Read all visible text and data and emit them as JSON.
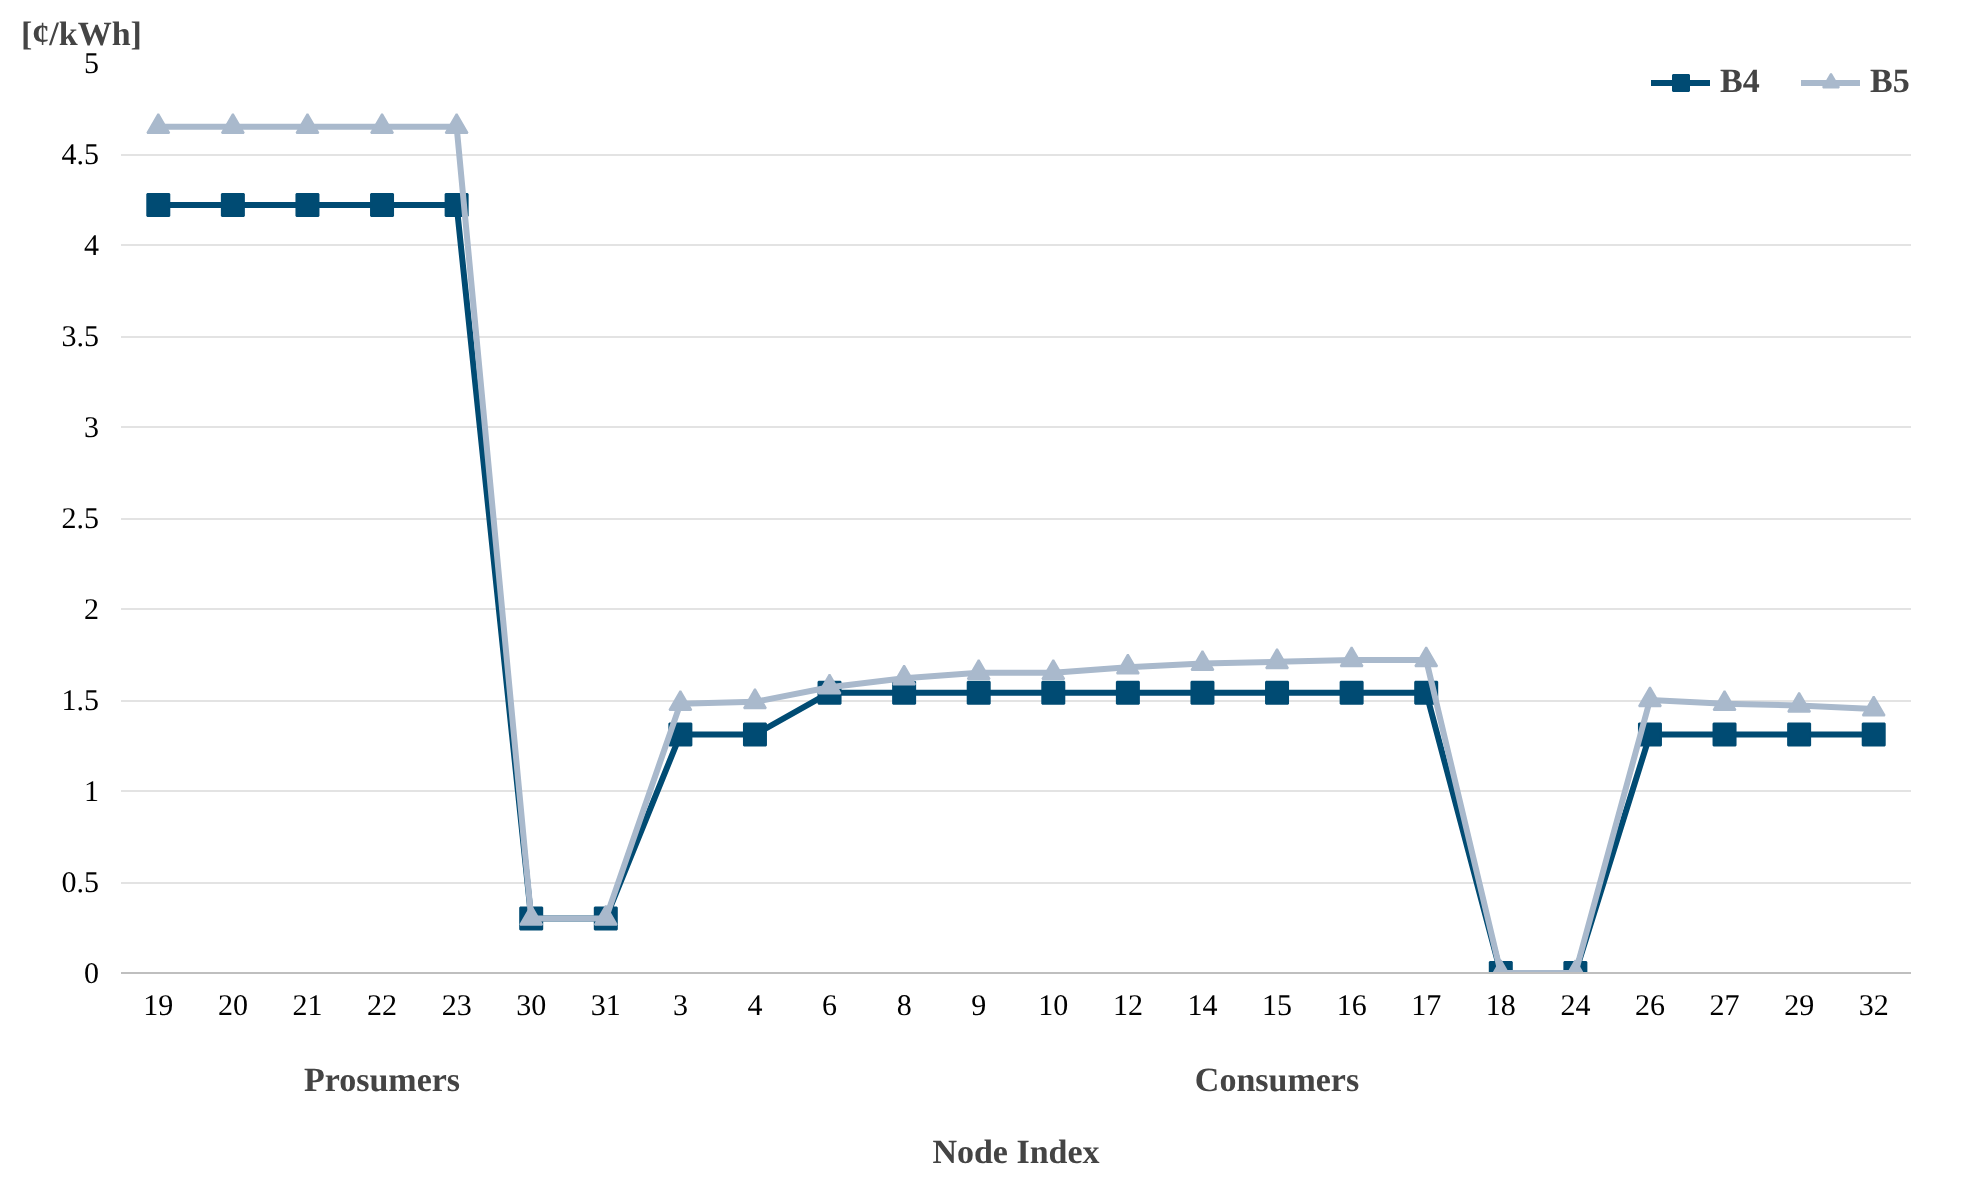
{
  "chart_data": {
    "type": "line",
    "xlabel": "Node Index",
    "ylabel": "[¢/kWh]",
    "categories": [
      "19",
      "20",
      "21",
      "22",
      "23",
      "30",
      "31",
      "3",
      "4",
      "6",
      "8",
      "9",
      "10",
      "12",
      "14",
      "15",
      "16",
      "17",
      "18",
      "24",
      "26",
      "27",
      "29",
      "32"
    ],
    "series": [
      {
        "name": "B4",
        "color": "#004b73",
        "marker": "square",
        "values": [
          4.22,
          4.22,
          4.22,
          4.22,
          4.22,
          0.3,
          0.3,
          1.31,
          1.31,
          1.54,
          1.54,
          1.54,
          1.54,
          1.54,
          1.54,
          1.54,
          1.54,
          1.54,
          0,
          0,
          1.31,
          1.31,
          1.31,
          1.31
        ]
      },
      {
        "name": "B5",
        "color": "#a9b9cc",
        "marker": "triangle",
        "values": [
          4.65,
          4.65,
          4.65,
          4.65,
          4.65,
          0.3,
          0.3,
          1.48,
          1.49,
          1.57,
          1.62,
          1.65,
          1.65,
          1.68,
          1.7,
          1.71,
          1.72,
          1.72,
          0,
          0,
          1.5,
          1.48,
          1.47,
          1.45
        ]
      }
    ],
    "annotations": [
      "Prosumers",
      "Consumers"
    ],
    "ylim": [
      0,
      5
    ],
    "yticks": [
      0,
      0.5,
      1,
      1.5,
      2,
      2.5,
      3,
      3.5,
      4,
      4.5,
      5
    ],
    "grid": "y",
    "legend": "top right"
  }
}
